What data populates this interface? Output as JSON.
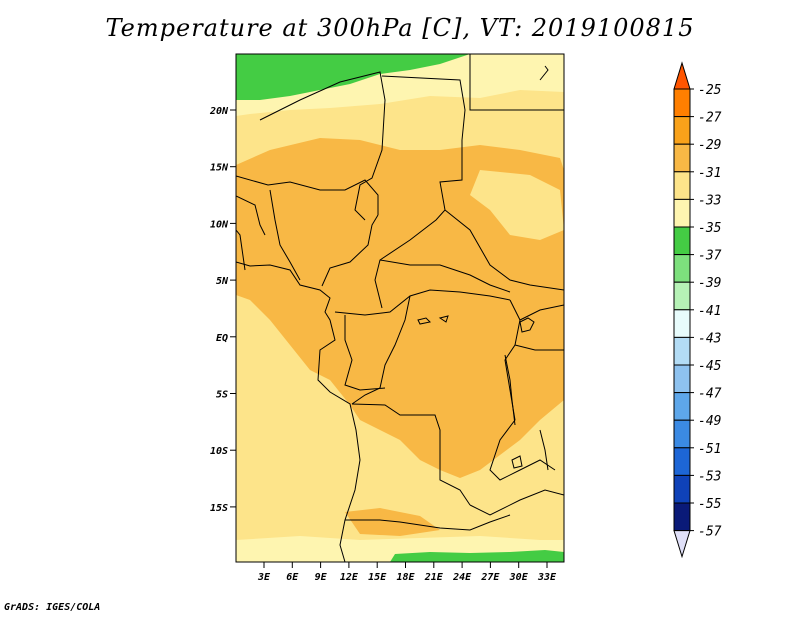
{
  "title": "Temperature at 300hPa [C], VT: 2019100815",
  "credit": "GrADS: IGES/COLA",
  "map": {
    "lon_labels": [
      "3E",
      "6E",
      "9E",
      "12E",
      "15E",
      "18E",
      "21E",
      "24E",
      "27E",
      "30E",
      "33E"
    ],
    "lat_labels": [
      "20N",
      "15N",
      "10N",
      "5N",
      "EQ",
      "5S",
      "10S",
      "15S"
    ],
    "colors": {
      "band_minus33_31": "#fde48a",
      "band_minus35_33": "#fef5b0",
      "band_minus31_29": "#f8b845",
      "band_minus37_35": "#44cc44"
    }
  },
  "colorbar": {
    "labels": [
      "-25",
      "-27",
      "-29",
      "-31",
      "-33",
      "-35",
      "-37",
      "-39",
      "-41",
      "-43",
      "-45",
      "-47",
      "-49",
      "-51",
      "-53",
      "-55",
      "-57"
    ],
    "colors": [
      "#ff5500",
      "#ff7f00",
      "#f9a21a",
      "#f8b845",
      "#fde48a",
      "#fef5b0",
      "#44cc44",
      "#7de07d",
      "#b6f2b6",
      "#e8fcfc",
      "#b3dcf5",
      "#8ec2ef",
      "#5ea7ea",
      "#3b8ae3",
      "#1d66d6",
      "#0f42b8",
      "#0a1a78",
      "#e0e0f8"
    ]
  }
}
